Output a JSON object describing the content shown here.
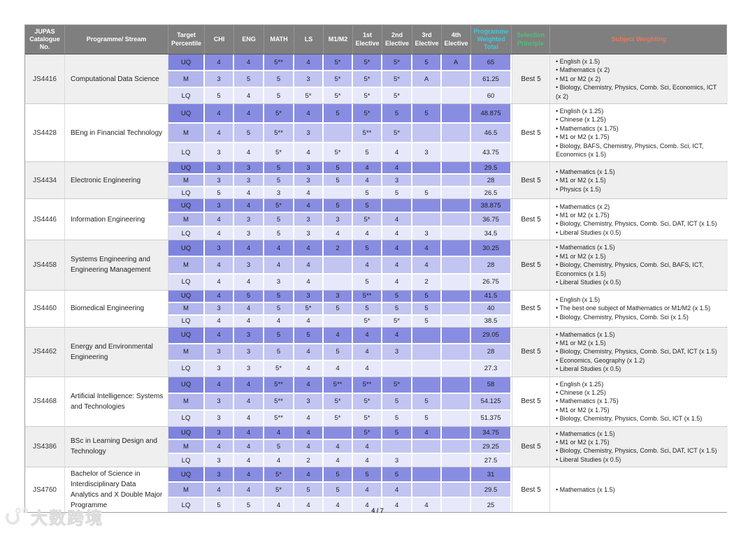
{
  "colors": {
    "uq_band": "#898de2",
    "m_band": "#c2c5f1",
    "lq_band": "#e7e9fa",
    "header_bg": "#7f7f7f",
    "cyan": "#3fc9dc",
    "green": "#4cc273",
    "orange": "#e8795a"
  },
  "table": {
    "headers": [
      "JUPAS Catalogue No.",
      "Programme/ Stream",
      "Target Percentile",
      "CHI",
      "ENG",
      "MATH",
      "LS",
      "M1/M2",
      "1st Elective",
      "2nd Elective",
      "3rd Elective",
      "4th Elective",
      "Programme Weighted Total",
      "Selection Principle",
      "Subject Weighting"
    ],
    "rows": [
      {
        "code": "JS4416",
        "name": "Computational Data Science",
        "selection": "Best 5",
        "sub": [
          {
            "label": "UQ",
            "cells": [
              "4",
              "4",
              "5**",
              "4",
              "5*",
              "5*",
              "5*",
              "5",
              "A"
            ],
            "total": "65"
          },
          {
            "label": "M",
            "cells": [
              "3",
              "5",
              "5",
              "3",
              "5*",
              "5*",
              "5*",
              "A",
              ""
            ],
            "total": "61.25"
          },
          {
            "label": "LQ",
            "cells": [
              "5",
              "4",
              "5",
              "5*",
              "5*",
              "5*",
              "5*",
              "",
              ""
            ],
            "total": "60"
          }
        ],
        "weighting": [
          "English (x 1.5)",
          "Mathematics (x 2)",
          "M1 or M2 (x 2)",
          "Biology, Chemistry, Physics, Comb. Sci, Economics, ICT (x 2)"
        ]
      },
      {
        "code": "JS4428",
        "name": "BEng in Financial Technology",
        "selection": "Best 5",
        "sub": [
          {
            "label": "UQ",
            "cells": [
              "4",
              "4",
              "5*",
              "4",
              "5",
              "5*",
              "5",
              "5",
              ""
            ],
            "total": "48.875"
          },
          {
            "label": "M",
            "cells": [
              "4",
              "5",
              "5**",
              "3",
              "",
              "5**",
              "5*",
              "",
              ""
            ],
            "total": "46.5"
          },
          {
            "label": "LQ",
            "cells": [
              "3",
              "4",
              "5*",
              "4",
              "5*",
              "5",
              "4",
              "3",
              ""
            ],
            "total": "43.75"
          }
        ],
        "weighting": [
          "English (x 1.25)",
          "Chinese (x 1.25)",
          "Mathematics (x 1.75)",
          "M1 or M2 (x 1.75)",
          "Biology, BAFS, Chemistry,  Physics, Comb. Sci, ICT, Economics (x 1.5)"
        ]
      },
      {
        "code": "JS4434",
        "name": "Electronic Engineering",
        "selection": "Best 5",
        "sub": [
          {
            "label": "UQ",
            "cells": [
              "3",
              "3",
              "5",
              "3",
              "5",
              "4",
              "4",
              "",
              ""
            ],
            "total": "29.5"
          },
          {
            "label": "M",
            "cells": [
              "3",
              "3",
              "5",
              "3",
              "5",
              "4",
              "3",
              "",
              ""
            ],
            "total": "28"
          },
          {
            "label": "LQ",
            "cells": [
              "5",
              "4",
              "3",
              "4",
              "",
              "5",
              "5",
              "5",
              ""
            ],
            "total": "26.5"
          }
        ],
        "weighting": [
          "Mathematics (x 1.5)",
          "M1 or M2 (x 1.5)",
          "Physics (x 1.5)"
        ]
      },
      {
        "code": "JS4446",
        "name": "Information Engineering",
        "selection": "Best 5",
        "sub": [
          {
            "label": "UQ",
            "cells": [
              "3",
              "4",
              "5*",
              "4",
              "5",
              "5",
              "",
              "",
              ""
            ],
            "total": "38.875"
          },
          {
            "label": "M",
            "cells": [
              "4",
              "3",
              "5",
              "3",
              "3",
              "5*",
              "4",
              "",
              ""
            ],
            "total": "36.75"
          },
          {
            "label": "LQ",
            "cells": [
              "4",
              "3",
              "5",
              "3",
              "4",
              "4",
              "4",
              "3",
              ""
            ],
            "total": "34.5"
          }
        ],
        "weighting": [
          "Mathematics (x 2)",
          "M1 or M2 (x 1.75)",
          "Biology, Chemistry, Physics, Comb. Sci, DAT, ICT (x 1.5)",
          "Liberal Studies (x 0.5)"
        ]
      },
      {
        "code": "JS4458",
        "name": "Systems Engineering and Engineering Management",
        "selection": "Best 5",
        "sub": [
          {
            "label": "UQ",
            "cells": [
              "3",
              "4",
              "4",
              "4",
              "2",
              "5",
              "4",
              "4",
              ""
            ],
            "total": "30.25"
          },
          {
            "label": "M",
            "cells": [
              "4",
              "3",
              "4",
              "4",
              "",
              "4",
              "4",
              "4",
              ""
            ],
            "total": "28"
          },
          {
            "label": "LQ",
            "cells": [
              "4",
              "4",
              "3",
              "4",
              "",
              "5",
              "4",
              "2",
              ""
            ],
            "total": "26.75"
          }
        ],
        "weighting": [
          "Mathematics (x 1.5)",
          "M1 or M2 (x 1.5)",
          "Biology, Chemistry, Physics, Comb. Sci, BAFS, ICT, Economics (x 1.5)",
          "Liberal Studies (x 0.5)"
        ]
      },
      {
        "code": "JS4460",
        "name": "Biomedical Engineering",
        "selection": "Best 5",
        "sub": [
          {
            "label": "UQ",
            "cells": [
              "4",
              "5",
              "5",
              "3",
              "3",
              "5**",
              "5",
              "5",
              ""
            ],
            "total": "41.5"
          },
          {
            "label": "M",
            "cells": [
              "3",
              "4",
              "5",
              "5*",
              "5",
              "5",
              "5",
              "5",
              ""
            ],
            "total": "40"
          },
          {
            "label": "LQ",
            "cells": [
              "4",
              "4",
              "4",
              "4",
              "",
              "5*",
              "5*",
              "5",
              ""
            ],
            "total": "38.5"
          }
        ],
        "weighting": [
          "English (x 1.5)",
          "The best one subject of Mathematics or M1/M2 (x 1.5)",
          "Biology, Chemistry, Physics, Comb. Sci (x 1.5)"
        ]
      },
      {
        "code": "JS4462",
        "name": "Energy and Environmental Engineering",
        "selection": "Best 5",
        "sub": [
          {
            "label": "UQ",
            "cells": [
              "4",
              "3",
              "5",
              "5",
              "4",
              "4",
              "4",
              "",
              ""
            ],
            "total": "29.05"
          },
          {
            "label": "M",
            "cells": [
              "3",
              "3",
              "5",
              "4",
              "5",
              "4",
              "3",
              "",
              ""
            ],
            "total": "28"
          },
          {
            "label": "LQ",
            "cells": [
              "3",
              "3",
              "5*",
              "4",
              "4",
              "4",
              "",
              "",
              ""
            ],
            "total": "27.3"
          }
        ],
        "weighting": [
          "Mathematics (x 1.5)",
          "M1 or M2 (x 1.5)",
          "Biology, Chemistry, Physics, Comb. Sci, DAT, ICT (x 1.5)",
          "Economics, Geography (x 1.2)",
          "Liberal Studies (x 0.5)"
        ]
      },
      {
        "code": "JS4468",
        "name": "Artificial Intelligence: Systems and Technologies",
        "selection": "Best 5",
        "sub": [
          {
            "label": "UQ",
            "cells": [
              "4",
              "4",
              "5**",
              "4",
              "5**",
              "5**",
              "5*",
              "",
              ""
            ],
            "total": "58"
          },
          {
            "label": "M",
            "cells": [
              "3",
              "4",
              "5**",
              "3",
              "5*",
              "5*",
              "5",
              "5",
              ""
            ],
            "total": "54.125"
          },
          {
            "label": "LQ",
            "cells": [
              "3",
              "4",
              "5**",
              "4",
              "5*",
              "5*",
              "5",
              "5",
              ""
            ],
            "total": "51.375"
          }
        ],
        "weighting": [
          "English (x 1.25)",
          "Chinese (x 1.25)",
          "Mathematics (x 1.75)",
          "M1 or M2 (x 1.75)",
          "Biology, Chemistry, Physics, Comb. Sci, ICT (x 1.5)"
        ]
      },
      {
        "code": "JS4386",
        "name": "BSc in Learning Design and Technology",
        "selection": "Best 5",
        "sub": [
          {
            "label": "UQ",
            "cells": [
              "3",
              "4",
              "4",
              "4",
              "",
              "5*",
              "5",
              "4",
              ""
            ],
            "total": "34.75"
          },
          {
            "label": "M",
            "cells": [
              "4",
              "4",
              "5",
              "4",
              "4",
              "4",
              "",
              "",
              ""
            ],
            "total": "29.25"
          },
          {
            "label": "LQ",
            "cells": [
              "3",
              "4",
              "4",
              "2",
              "4",
              "4",
              "3",
              "",
              ""
            ],
            "total": "27.5"
          }
        ],
        "weighting": [
          "Mathematics (x 1.5)",
          "M1 or M2 (x 1.75)",
          "Biology, Chemistry, Physics, Comb. Sci, DAT, ICT (x 1.5)",
          "Liberal Studies (x 0.5)"
        ]
      },
      {
        "code": "JS4760",
        "name": "Bachelor of Science in Interdisciplinary Data Analytics and X Double Major Programme",
        "selection": "Best 5",
        "sub": [
          {
            "label": "UQ",
            "cells": [
              "3",
              "4",
              "5*",
              "4",
              "5",
              "5",
              "5",
              "",
              ""
            ],
            "total": "31"
          },
          {
            "label": "M",
            "cells": [
              "4",
              "4",
              "5*",
              "5",
              "5",
              "4",
              "4",
              "",
              ""
            ],
            "total": "29.5"
          },
          {
            "label": "LQ",
            "cells": [
              "5",
              "5",
              "4",
              "4",
              "4",
              "4",
              "4",
              "4",
              ""
            ],
            "total": "25"
          }
        ],
        "weighting": [
          "Mathematics (x 1.5)"
        ]
      }
    ]
  },
  "footer": {
    "page": "4 / 7"
  },
  "watermark": {
    "text": "大数跨境"
  }
}
